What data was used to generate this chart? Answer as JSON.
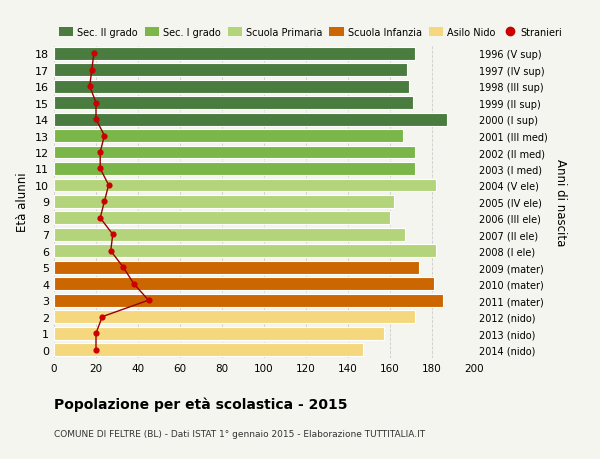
{
  "ages": [
    18,
    17,
    16,
    15,
    14,
    13,
    12,
    11,
    10,
    9,
    8,
    7,
    6,
    5,
    4,
    3,
    2,
    1,
    0
  ],
  "right_labels": [
    "1996 (V sup)",
    "1997 (IV sup)",
    "1998 (III sup)",
    "1999 (II sup)",
    "2000 (I sup)",
    "2001 (III med)",
    "2002 (II med)",
    "2003 (I med)",
    "2004 (V ele)",
    "2005 (IV ele)",
    "2006 (III ele)",
    "2007 (II ele)",
    "2008 (I ele)",
    "2009 (mater)",
    "2010 (mater)",
    "2011 (mater)",
    "2012 (nido)",
    "2013 (nido)",
    "2014 (nido)"
  ],
  "bar_values": [
    172,
    168,
    169,
    171,
    187,
    166,
    172,
    172,
    182,
    162,
    160,
    167,
    182,
    174,
    181,
    185,
    172,
    157,
    147
  ],
  "bar_colors": [
    "#4a7c3f",
    "#4a7c3f",
    "#4a7c3f",
    "#4a7c3f",
    "#4a7c3f",
    "#7ab648",
    "#7ab648",
    "#7ab648",
    "#b3d47a",
    "#b3d47a",
    "#b3d47a",
    "#b3d47a",
    "#b3d47a",
    "#cc6600",
    "#cc6600",
    "#cc6600",
    "#f5d87e",
    "#f5d87e",
    "#f5d87e"
  ],
  "stranieri_values": [
    19,
    18,
    17,
    20,
    20,
    24,
    22,
    22,
    26,
    24,
    22,
    28,
    27,
    33,
    38,
    45,
    23,
    20,
    20
  ],
  "legend_labels": [
    "Sec. II grado",
    "Sec. I grado",
    "Scuola Primaria",
    "Scuola Infanzia",
    "Asilo Nido",
    "Stranieri"
  ],
  "legend_colors": [
    "#4a7c3f",
    "#7ab648",
    "#b3d47a",
    "#cc6600",
    "#f5d87e",
    "#cc0000"
  ],
  "title": "Popolazione per età scolastica - 2015",
  "subtitle": "COMUNE DI FELTRE (BL) - Dati ISTAT 1° gennaio 2015 - Elaborazione TUTTITALIA.IT",
  "ylabel_left": "Età alunni",
  "ylabel_right": "Anni di nascita",
  "xlim": [
    0,
    200
  ],
  "xticks": [
    0,
    20,
    40,
    60,
    80,
    100,
    120,
    140,
    160,
    180,
    200
  ],
  "background_color": "#f5f5ef",
  "bar_height": 0.78,
  "stranieri_line_color": "#990000",
  "stranieri_dot_color": "#cc0000"
}
